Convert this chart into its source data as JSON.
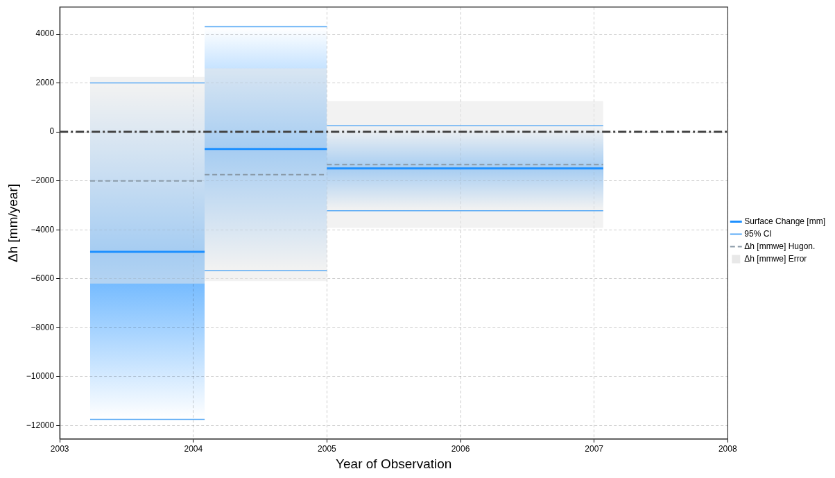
{
  "chart_data": {
    "type": "step",
    "xlabel": "Year of Observation",
    "ylabel": "Δh [mm/year]",
    "xlim": [
      "2003",
      "2008"
    ],
    "xticks": [
      "2003",
      "2004",
      "2005",
      "2006",
      "2007",
      "2008"
    ],
    "ylim": [
      -12550,
      5100
    ],
    "yticks": [
      -12000,
      -10000,
      -8000,
      -6000,
      -4000,
      -2000,
      0,
      2000,
      4000
    ],
    "grid": true,
    "legend": "right",
    "ref_lines": [
      {
        "axis": "y",
        "value": 0,
        "color": "#444444",
        "line_style": "dashdot"
      }
    ],
    "series": [
      {
        "name": "Surface Change [mm]",
        "color": "#1e90ff",
        "x": [
          "2003-03-25",
          "2004-02-01",
          "2004-02-01",
          "2005-01-01",
          "2005-01-01",
          "2007-01-26"
        ],
        "values": [
          -4900,
          -4900,
          -700,
          -700,
          -1490,
          -1490
        ]
      },
      {
        "name": "95% CI",
        "type": "step",
        "color": "#5aaaf5",
        "x": [
          "2003-03-25",
          "2004-02-01",
          "2004-02-01",
          "2005-01-01",
          "2005-01-01",
          "2007-01-26"
        ],
        "values": [
          2000,
          2000,
          4300,
          4300,
          250,
          250
        ]
      },
      {
        "type": "step",
        "color": "#5aaaf5",
        "x": [
          "2003-03-25",
          "2004-02-01",
          "2004-02-01",
          "2005-01-01",
          "2005-01-01",
          "2007-01-26"
        ],
        "values": [
          -11750,
          -11750,
          -5670,
          -5670,
          -3220,
          -3220
        ]
      },
      {
        "name": "Δh [mmwe] Hugon.",
        "type": "step",
        "color": "#8a9aa8",
        "line_style": "dashed",
        "x": [
          "2003-03-25",
          "2004-02-01",
          "2004-02-01",
          "2005-01-01",
          "2005-01-01",
          "2007-01-26"
        ],
        "values": [
          -2000,
          -2000,
          -1750,
          -1750,
          -1340,
          -1340
        ],
        "upper": [
          2250,
          2250,
          2600,
          2600,
          1260,
          1260
        ],
        "lower": [
          -6200,
          -6200,
          -6100,
          -6100,
          -3920,
          -3920
        ]
      },
      {
        "name": "Δh [mmwe] Error",
        "type": "area",
        "color": "#e8e8e8"
      }
    ]
  }
}
